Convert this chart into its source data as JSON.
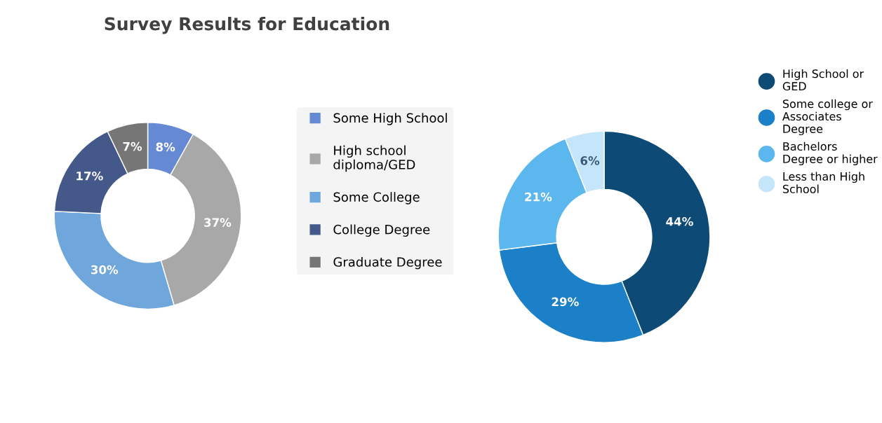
{
  "chart_data": [
    {
      "type": "donut",
      "title": "Survey Results for Education",
      "categories": [
        "Some High School",
        "High school\ndiploma/GED",
        "Some College",
        "College Degree",
        "Graduate Degree"
      ],
      "values": [
        8,
        37,
        30,
        17,
        7
      ],
      "colors": [
        "#6689d4",
        "#a8a8a8",
        "#6fa6dc",
        "#44598a",
        "#767676"
      ],
      "value_labels": [
        "8%",
        "37%",
        "30%",
        "17%",
        "7%"
      ],
      "legend": "right",
      "marker": "square"
    },
    {
      "type": "donut",
      "categories": [
        "High School or\nGED",
        "Some college or\nAssociates\nDegree",
        "Bachelors\nDegree or higher",
        "Less than High\nSchool"
      ],
      "values": [
        44,
        29,
        21,
        6
      ],
      "colors": [
        "#0d4a75",
        "#1b80c8",
        "#5db7ef",
        "#c5e5fa"
      ],
      "value_labels": [
        "44%",
        "29%",
        "21%",
        "6%"
      ],
      "legend": "right",
      "marker": "circle"
    }
  ]
}
